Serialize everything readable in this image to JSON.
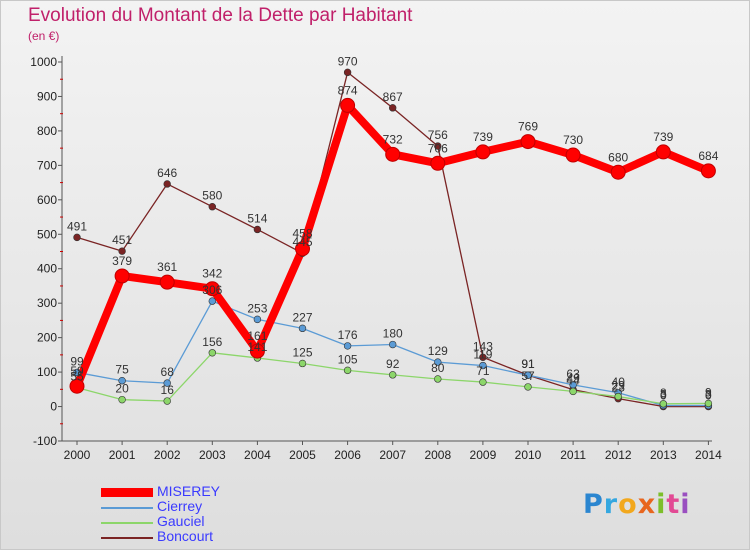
{
  "chart_data": {
    "type": "line",
    "title": "Evolution du Montant de la Dette par Habitant",
    "subtitle": "(en €)",
    "x": [
      "2000",
      "2001",
      "2002",
      "2003",
      "2004",
      "2005",
      "2006",
      "2007",
      "2008",
      "2009",
      "2010",
      "2011",
      "2012",
      "2013",
      "2014"
    ],
    "ylim": [
      -100,
      1000
    ],
    "yticks": [
      -100,
      0,
      100,
      200,
      300,
      400,
      500,
      600,
      700,
      800,
      900,
      1000
    ],
    "grid": false,
    "series": [
      {
        "name": "MISEREY",
        "color": "#ff0000",
        "values": [
          59,
          379,
          361,
          342,
          161,
          458,
          874,
          732,
          706,
          739,
          769,
          730,
          680,
          739,
          684
        ]
      },
      {
        "name": "Cierrey",
        "color": "#5b9bd5",
        "values": [
          99,
          75,
          68,
          306,
          253,
          227,
          176,
          180,
          129,
          119,
          91,
          63,
          40,
          3,
          3
        ]
      },
      {
        "name": "Gauciel",
        "color": "#8cd66a",
        "values": [
          55,
          20,
          16,
          156,
          141,
          125,
          105,
          92,
          80,
          71,
          57,
          44,
          29,
          8,
          9
        ]
      },
      {
        "name": "Boncourt",
        "color": "#7a2424",
        "values": [
          491,
          451,
          646,
          580,
          514,
          445,
          970,
          867,
          756,
          143,
          91,
          49,
          23,
          0,
          0
        ]
      }
    ]
  },
  "logo_text": [
    "P",
    "r",
    "o",
    "x",
    "i",
    "t",
    "i"
  ]
}
